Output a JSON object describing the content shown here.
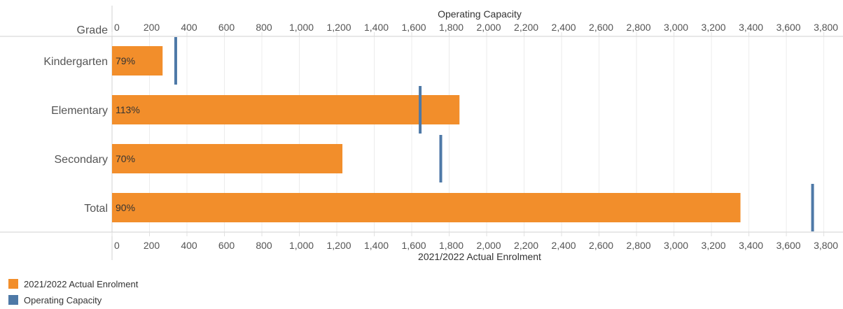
{
  "chart_data": {
    "type": "bar",
    "orientation": "horizontal",
    "category_axis_title": "Grade",
    "top_axis_title": "Operating Capacity",
    "bottom_axis_title": "2021/2022 Actual Enrolment",
    "categories": [
      "Kindergarten",
      "Elementary",
      "Secondary",
      "Total"
    ],
    "series": [
      {
        "name": "2021/2022 Actual Enrolment",
        "values": [
          270,
          1855,
          1230,
          3355
        ],
        "data_labels": [
          "79%",
          "113%",
          "70%",
          "90%"
        ],
        "color": "#F28E2B"
      },
      {
        "name": "Operating Capacity",
        "values": [
          340,
          1645,
          1755,
          3740
        ],
        "color": "#4E79A7"
      }
    ],
    "xlim": [
      0,
      3880
    ],
    "x_ticks": [
      "0",
      "200",
      "400",
      "600",
      "800",
      "1,000",
      "1,200",
      "1,400",
      "1,600",
      "1,800",
      "2,000",
      "2,200",
      "2,400",
      "2,600",
      "2,800",
      "3,000",
      "3,200",
      "3,400",
      "3,600",
      "3,800"
    ],
    "tick_values": [
      0,
      200,
      400,
      600,
      800,
      1000,
      1200,
      1400,
      1600,
      1800,
      2000,
      2200,
      2400,
      2600,
      2800,
      3000,
      3200,
      3400,
      3600,
      3800
    ],
    "grid": true,
    "legend_position": "bottom-left"
  }
}
